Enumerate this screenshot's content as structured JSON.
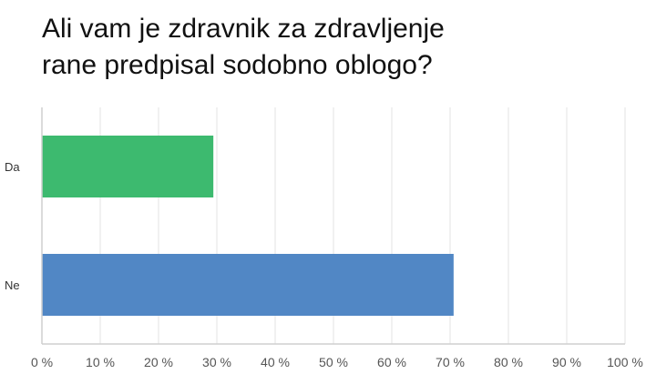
{
  "chart_data": {
    "type": "bar",
    "orientation": "horizontal",
    "title_lines": [
      "Ali vam je zdravnik za zdravljenje",
      "rane predpisal sodobno oblogo?"
    ],
    "categories": [
      "Da",
      "Ne"
    ],
    "values": [
      29.4,
      70.6
    ],
    "bar_colors": [
      "#3dba6f",
      "#5187c5"
    ],
    "xlim": [
      0,
      100
    ],
    "x_ticks": [
      "0 %",
      "10 %",
      "20 %",
      "30 %",
      "40 %",
      "50 %",
      "60 %",
      "70 %",
      "80 %",
      "90 %",
      "100 %"
    ],
    "xlabel": "",
    "ylabel": "",
    "grid": true,
    "legend": "none"
  }
}
